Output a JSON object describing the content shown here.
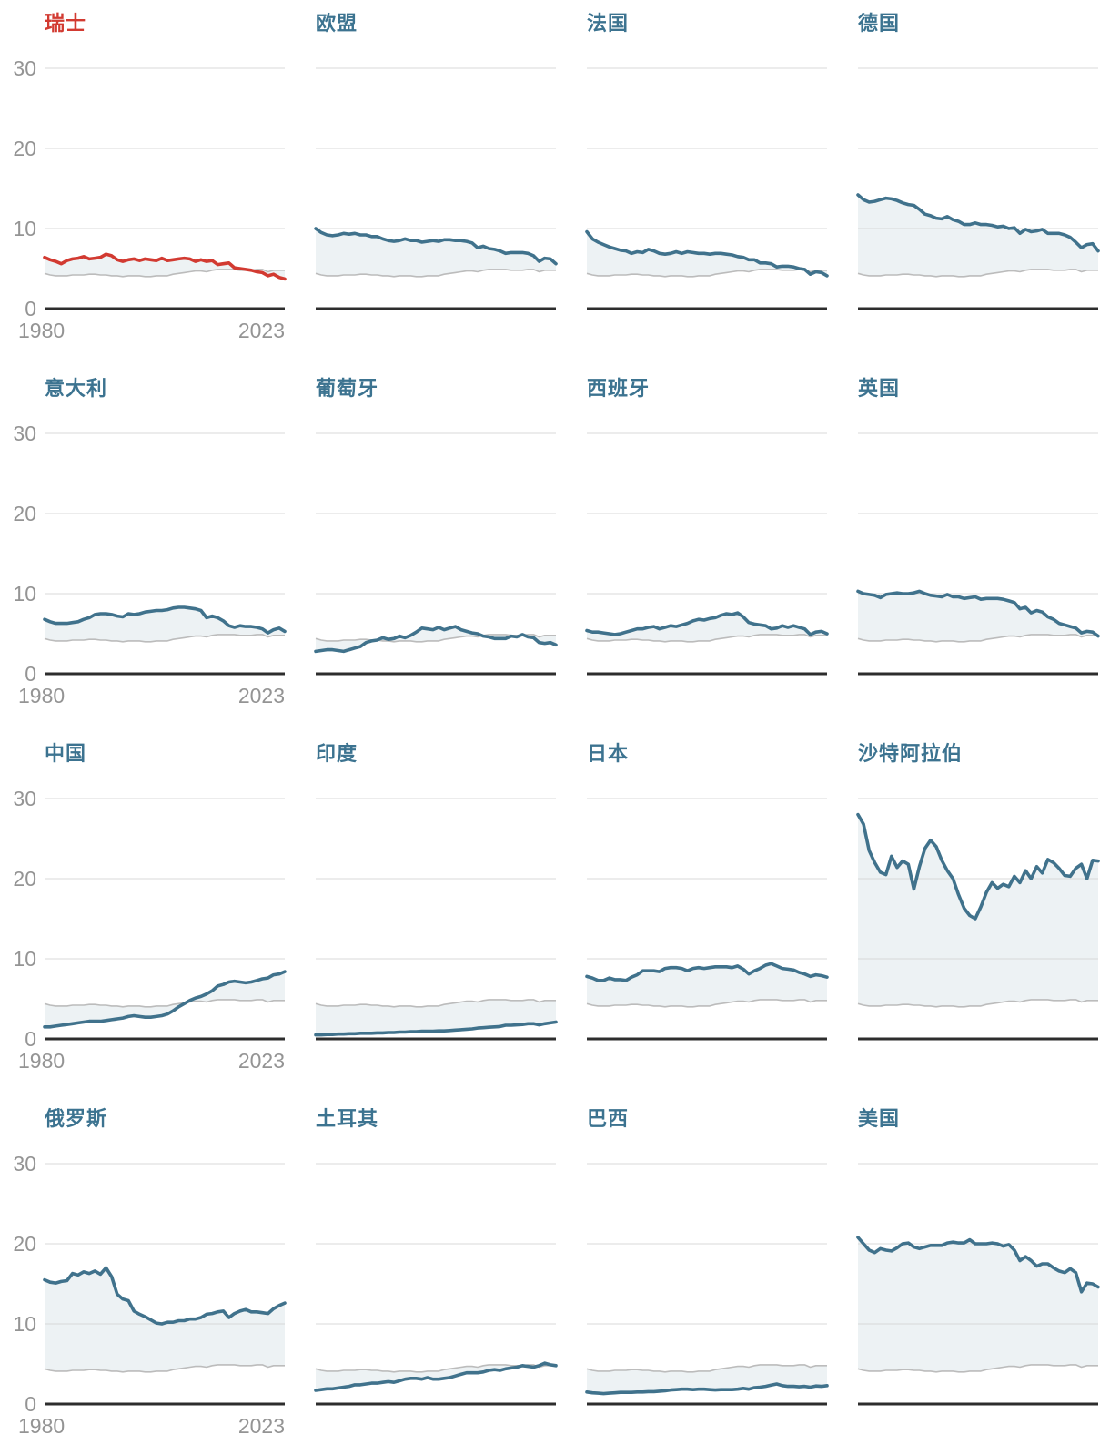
{
  "axis": {
    "y_ticks": [
      "30",
      "20",
      "10",
      "0"
    ],
    "x_start_label": "1980",
    "x_end_label": "2023"
  },
  "colors": {
    "country_line": "#40728c",
    "highlight_line": "#d23a31",
    "reference_line": "#bcbcbc",
    "band_fill": "#edf2f4",
    "gridline": "#d8d8d8",
    "baseline": "#2d2d2d",
    "tick_label": "#949494",
    "title_blue": "#3c7390",
    "title_red": "#d23a31"
  },
  "chart_data": {
    "type": "line",
    "x": {
      "start": 1980,
      "end": 2023
    },
    "ylim": [
      0,
      30
    ],
    "y_gridlines": [
      10,
      20,
      30
    ],
    "grid": "horizontal-only",
    "legend": "none",
    "layout": "4x4 small multiples; y labels and x labels only on first column",
    "reference_series": {
      "name": "world-average",
      "values": [
        4.4,
        4.2,
        4.1,
        4.1,
        4.1,
        4.2,
        4.2,
        4.2,
        4.3,
        4.3,
        4.2,
        4.2,
        4.1,
        4.1,
        4.0,
        4.1,
        4.1,
        4.1,
        4.0,
        4.0,
        4.1,
        4.1,
        4.1,
        4.3,
        4.4,
        4.5,
        4.6,
        4.7,
        4.7,
        4.6,
        4.8,
        4.9,
        4.9,
        4.9,
        4.9,
        4.8,
        4.8,
        4.8,
        4.9,
        4.9,
        4.6,
        4.8,
        4.8,
        4.8
      ]
    },
    "panels": [
      {
        "key": "switzerland",
        "title": "瑞士",
        "highlight": true,
        "values": [
          6.4,
          6.1,
          5.9,
          5.6,
          6.0,
          6.2,
          6.3,
          6.5,
          6.2,
          6.3,
          6.4,
          6.8,
          6.6,
          6.1,
          5.9,
          6.1,
          6.2,
          6.0,
          6.2,
          6.1,
          6.0,
          6.3,
          6.0,
          6.1,
          6.2,
          6.3,
          6.2,
          5.9,
          6.1,
          5.9,
          6.0,
          5.5,
          5.6,
          5.7,
          5.1,
          5.0,
          4.9,
          4.8,
          4.6,
          4.5,
          4.1,
          4.3,
          3.9,
          3.7
        ]
      },
      {
        "key": "eu",
        "title": "欧盟",
        "highlight": false,
        "values": [
          10.0,
          9.5,
          9.2,
          9.1,
          9.2,
          9.4,
          9.3,
          9.4,
          9.2,
          9.2,
          9.0,
          9.0,
          8.7,
          8.5,
          8.4,
          8.5,
          8.7,
          8.5,
          8.5,
          8.3,
          8.4,
          8.5,
          8.4,
          8.6,
          8.6,
          8.5,
          8.5,
          8.4,
          8.2,
          7.6,
          7.8,
          7.5,
          7.4,
          7.2,
          6.9,
          7.0,
          7.0,
          7.0,
          6.9,
          6.6,
          5.9,
          6.3,
          6.2,
          5.6
        ]
      },
      {
        "key": "france",
        "title": "法国",
        "highlight": false,
        "values": [
          9.6,
          8.7,
          8.3,
          8.0,
          7.7,
          7.5,
          7.3,
          7.2,
          6.9,
          7.1,
          7.0,
          7.4,
          7.2,
          6.9,
          6.8,
          6.9,
          7.1,
          6.9,
          7.1,
          7.0,
          6.9,
          6.9,
          6.8,
          6.9,
          6.9,
          6.8,
          6.7,
          6.5,
          6.4,
          6.1,
          6.1,
          5.7,
          5.7,
          5.6,
          5.2,
          5.3,
          5.3,
          5.2,
          5.0,
          4.9,
          4.3,
          4.6,
          4.5,
          4.1
        ]
      },
      {
        "key": "germany",
        "title": "德国",
        "highlight": false,
        "values": [
          14.2,
          13.6,
          13.3,
          13.4,
          13.6,
          13.8,
          13.7,
          13.5,
          13.2,
          13.0,
          12.9,
          12.4,
          11.8,
          11.6,
          11.3,
          11.2,
          11.5,
          11.1,
          10.9,
          10.5,
          10.5,
          10.7,
          10.5,
          10.5,
          10.4,
          10.2,
          10.3,
          10.0,
          10.1,
          9.4,
          9.9,
          9.6,
          9.7,
          9.9,
          9.4,
          9.4,
          9.4,
          9.2,
          8.9,
          8.3,
          7.6,
          8.0,
          8.1,
          7.2
        ]
      },
      {
        "key": "italy",
        "title": "意大利",
        "highlight": false,
        "values": [
          6.8,
          6.5,
          6.3,
          6.3,
          6.3,
          6.4,
          6.5,
          6.8,
          7.0,
          7.4,
          7.5,
          7.5,
          7.4,
          7.2,
          7.1,
          7.5,
          7.4,
          7.5,
          7.7,
          7.8,
          7.9,
          7.9,
          8.0,
          8.2,
          8.3,
          8.3,
          8.2,
          8.1,
          7.9,
          7.0,
          7.2,
          7.0,
          6.6,
          6.0,
          5.8,
          6.0,
          5.9,
          5.9,
          5.8,
          5.6,
          5.1,
          5.5,
          5.7,
          5.3
        ]
      },
      {
        "key": "portugal",
        "title": "葡萄牙",
        "highlight": false,
        "values": [
          2.8,
          2.9,
          3.0,
          3.0,
          2.9,
          2.8,
          3.0,
          3.2,
          3.4,
          3.9,
          4.1,
          4.2,
          4.5,
          4.3,
          4.4,
          4.7,
          4.5,
          4.8,
          5.2,
          5.7,
          5.6,
          5.5,
          5.8,
          5.5,
          5.7,
          5.9,
          5.5,
          5.3,
          5.1,
          5.0,
          4.7,
          4.6,
          4.4,
          4.4,
          4.4,
          4.7,
          4.6,
          4.9,
          4.6,
          4.5,
          3.9,
          3.8,
          3.9,
          3.6
        ]
      },
      {
        "key": "spain",
        "title": "西班牙",
        "highlight": false,
        "values": [
          5.4,
          5.2,
          5.2,
          5.1,
          5.0,
          4.9,
          5.0,
          5.2,
          5.4,
          5.6,
          5.6,
          5.8,
          5.9,
          5.6,
          5.8,
          6.0,
          5.9,
          6.1,
          6.3,
          6.6,
          6.8,
          6.7,
          6.9,
          7.0,
          7.3,
          7.5,
          7.4,
          7.6,
          7.1,
          6.4,
          6.2,
          6.1,
          6.0,
          5.6,
          5.7,
          6.0,
          5.8,
          6.0,
          5.8,
          5.6,
          4.9,
          5.2,
          5.3,
          5.0
        ]
      },
      {
        "key": "uk",
        "title": "英国",
        "highlight": false,
        "values": [
          10.3,
          10.0,
          9.9,
          9.8,
          9.5,
          9.9,
          10.0,
          10.1,
          10.0,
          10.0,
          10.1,
          10.3,
          10.0,
          9.8,
          9.7,
          9.6,
          9.9,
          9.6,
          9.6,
          9.4,
          9.5,
          9.6,
          9.3,
          9.4,
          9.4,
          9.4,
          9.3,
          9.1,
          8.9,
          8.1,
          8.3,
          7.6,
          7.9,
          7.7,
          7.1,
          6.8,
          6.3,
          6.1,
          5.9,
          5.7,
          5.1,
          5.3,
          5.2,
          4.7
        ]
      },
      {
        "key": "china",
        "title": "中国",
        "highlight": false,
        "values": [
          1.5,
          1.5,
          1.6,
          1.7,
          1.8,
          1.9,
          2.0,
          2.1,
          2.2,
          2.2,
          2.2,
          2.3,
          2.4,
          2.5,
          2.6,
          2.8,
          2.9,
          2.8,
          2.7,
          2.7,
          2.8,
          2.9,
          3.1,
          3.5,
          4.0,
          4.4,
          4.8,
          5.1,
          5.3,
          5.6,
          6.0,
          6.6,
          6.8,
          7.1,
          7.2,
          7.1,
          7.0,
          7.1,
          7.3,
          7.5,
          7.6,
          8.0,
          8.1,
          8.4
        ]
      },
      {
        "key": "india",
        "title": "印度",
        "highlight": false,
        "values": [
          0.5,
          0.5,
          0.55,
          0.55,
          0.6,
          0.6,
          0.65,
          0.65,
          0.7,
          0.7,
          0.7,
          0.75,
          0.75,
          0.8,
          0.8,
          0.85,
          0.85,
          0.9,
          0.9,
          0.95,
          0.95,
          0.95,
          1.0,
          1.0,
          1.05,
          1.1,
          1.15,
          1.2,
          1.25,
          1.35,
          1.4,
          1.45,
          1.5,
          1.55,
          1.7,
          1.7,
          1.75,
          1.8,
          1.9,
          1.9,
          1.75,
          1.9,
          2.0,
          2.1
        ]
      },
      {
        "key": "japan",
        "title": "日本",
        "highlight": false,
        "values": [
          7.8,
          7.6,
          7.3,
          7.3,
          7.6,
          7.4,
          7.4,
          7.3,
          7.7,
          8.0,
          8.5,
          8.5,
          8.5,
          8.4,
          8.8,
          8.9,
          8.9,
          8.8,
          8.5,
          8.8,
          8.9,
          8.8,
          8.9,
          9.0,
          9.0,
          9.0,
          8.9,
          9.1,
          8.7,
          8.1,
          8.5,
          8.8,
          9.2,
          9.4,
          9.1,
          8.8,
          8.7,
          8.6,
          8.3,
          8.1,
          7.8,
          8.0,
          7.9,
          7.7
        ]
      },
      {
        "key": "saudi-arabia",
        "title": "沙特阿拉伯",
        "highlight": false,
        "values": [
          28.0,
          26.8,
          23.5,
          22.0,
          20.8,
          20.5,
          22.8,
          21.4,
          22.2,
          21.8,
          18.7,
          21.5,
          23.8,
          24.8,
          24.0,
          22.3,
          21.0,
          20.0,
          18.0,
          16.3,
          15.4,
          15.0,
          16.5,
          18.3,
          19.5,
          18.8,
          19.3,
          19.0,
          20.3,
          19.5,
          21.0,
          20.0,
          21.5,
          20.7,
          22.4,
          22.0,
          21.3,
          20.4,
          20.3,
          21.3,
          21.8,
          20.0,
          22.3,
          22.2
        ]
      },
      {
        "key": "russia",
        "title": "俄罗斯",
        "highlight": false,
        "values": [
          15.5,
          15.2,
          15.1,
          15.3,
          15.4,
          16.3,
          16.1,
          16.5,
          16.3,
          16.6,
          16.2,
          17.0,
          15.9,
          13.7,
          13.1,
          12.9,
          11.6,
          11.2,
          10.9,
          10.5,
          10.1,
          10.0,
          10.2,
          10.2,
          10.4,
          10.4,
          10.6,
          10.6,
          10.8,
          11.2,
          11.3,
          11.5,
          11.6,
          10.8,
          11.3,
          11.6,
          11.8,
          11.5,
          11.5,
          11.4,
          11.3,
          11.9,
          12.3,
          12.6
        ]
      },
      {
        "key": "turkey",
        "title": "土耳其",
        "highlight": false,
        "values": [
          1.7,
          1.8,
          1.9,
          1.9,
          2.0,
          2.1,
          2.2,
          2.4,
          2.4,
          2.5,
          2.6,
          2.6,
          2.7,
          2.8,
          2.7,
          2.9,
          3.1,
          3.2,
          3.2,
          3.1,
          3.3,
          3.1,
          3.1,
          3.2,
          3.3,
          3.5,
          3.7,
          3.9,
          3.9,
          3.9,
          4.0,
          4.2,
          4.3,
          4.2,
          4.4,
          4.5,
          4.6,
          4.8,
          4.7,
          4.6,
          4.8,
          5.1,
          4.9,
          4.8
        ]
      },
      {
        "key": "brazil",
        "title": "巴西",
        "highlight": false,
        "values": [
          1.5,
          1.4,
          1.35,
          1.3,
          1.35,
          1.4,
          1.45,
          1.45,
          1.45,
          1.5,
          1.5,
          1.55,
          1.55,
          1.6,
          1.65,
          1.75,
          1.8,
          1.85,
          1.85,
          1.8,
          1.85,
          1.85,
          1.8,
          1.75,
          1.8,
          1.8,
          1.8,
          1.85,
          1.95,
          1.85,
          2.05,
          2.1,
          2.2,
          2.35,
          2.5,
          2.3,
          2.2,
          2.2,
          2.15,
          2.2,
          2.1,
          2.25,
          2.2,
          2.3
        ]
      },
      {
        "key": "usa",
        "title": "美国",
        "highlight": false,
        "values": [
          20.8,
          20.0,
          19.2,
          18.9,
          19.4,
          19.2,
          19.1,
          19.5,
          20.0,
          20.1,
          19.6,
          19.4,
          19.6,
          19.8,
          19.8,
          19.8,
          20.1,
          20.2,
          20.1,
          20.1,
          20.5,
          20.0,
          20.0,
          20.0,
          20.1,
          20.0,
          19.7,
          19.9,
          19.2,
          17.9,
          18.4,
          17.9,
          17.2,
          17.5,
          17.5,
          17.0,
          16.6,
          16.4,
          16.9,
          16.4,
          14.0,
          15.1,
          15.0,
          14.6
        ]
      }
    ]
  }
}
